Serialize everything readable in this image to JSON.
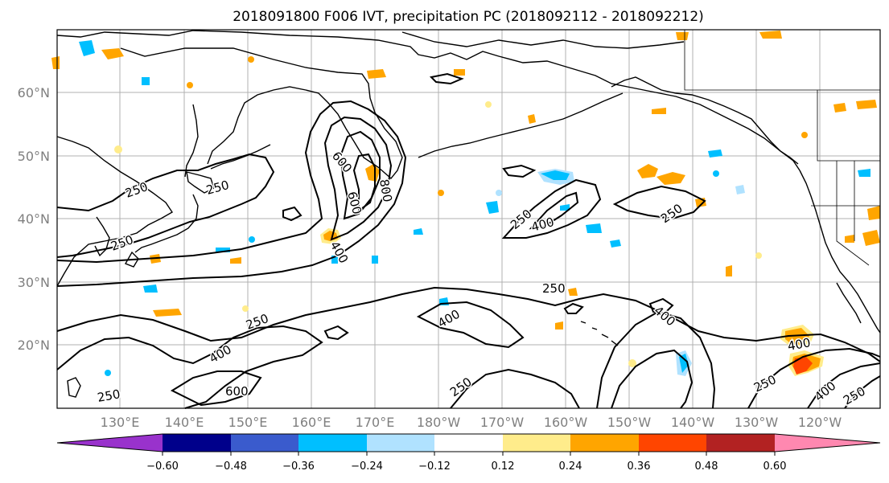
{
  "title": "2018091800 F006 IVT, precipitation PC (2018092112 - 2018092212)",
  "map": {
    "projection": "PlateCarree",
    "lon_labels": [
      "130°E",
      "140°E",
      "150°E",
      "160°E",
      "170°E",
      "180°W",
      "170°W",
      "160°W",
      "150°W",
      "140°W",
      "130°W",
      "120°W"
    ],
    "lat_labels": [
      "60°N",
      "50°N",
      "40°N",
      "30°N",
      "20°N"
    ],
    "grid": true,
    "contour_levels": [
      250,
      400,
      600,
      800
    ],
    "contour_labels": [
      "250",
      "250",
      "250",
      "250",
      "250",
      "250",
      "250",
      "250",
      "250",
      "250",
      "250",
      "400",
      "400",
      "400",
      "400",
      "400",
      "400",
      "400",
      "600",
      "600",
      "600",
      "800"
    ]
  },
  "colorbar": {
    "tick_labels": [
      "−0.60",
      "−0.48",
      "−0.36",
      "−0.24",
      "−0.12",
      "0.12",
      "0.24",
      "0.36",
      "0.48",
      "0.60"
    ],
    "colors": [
      "#9932cc",
      "#00008b",
      "#3a5bcd",
      "#00bfff",
      "#b0e2ff",
      "#ffffff",
      "#ffec8b",
      "#ffa500",
      "#ff4500",
      "#b22222",
      "#ff88b0"
    ],
    "extend": "both"
  }
}
